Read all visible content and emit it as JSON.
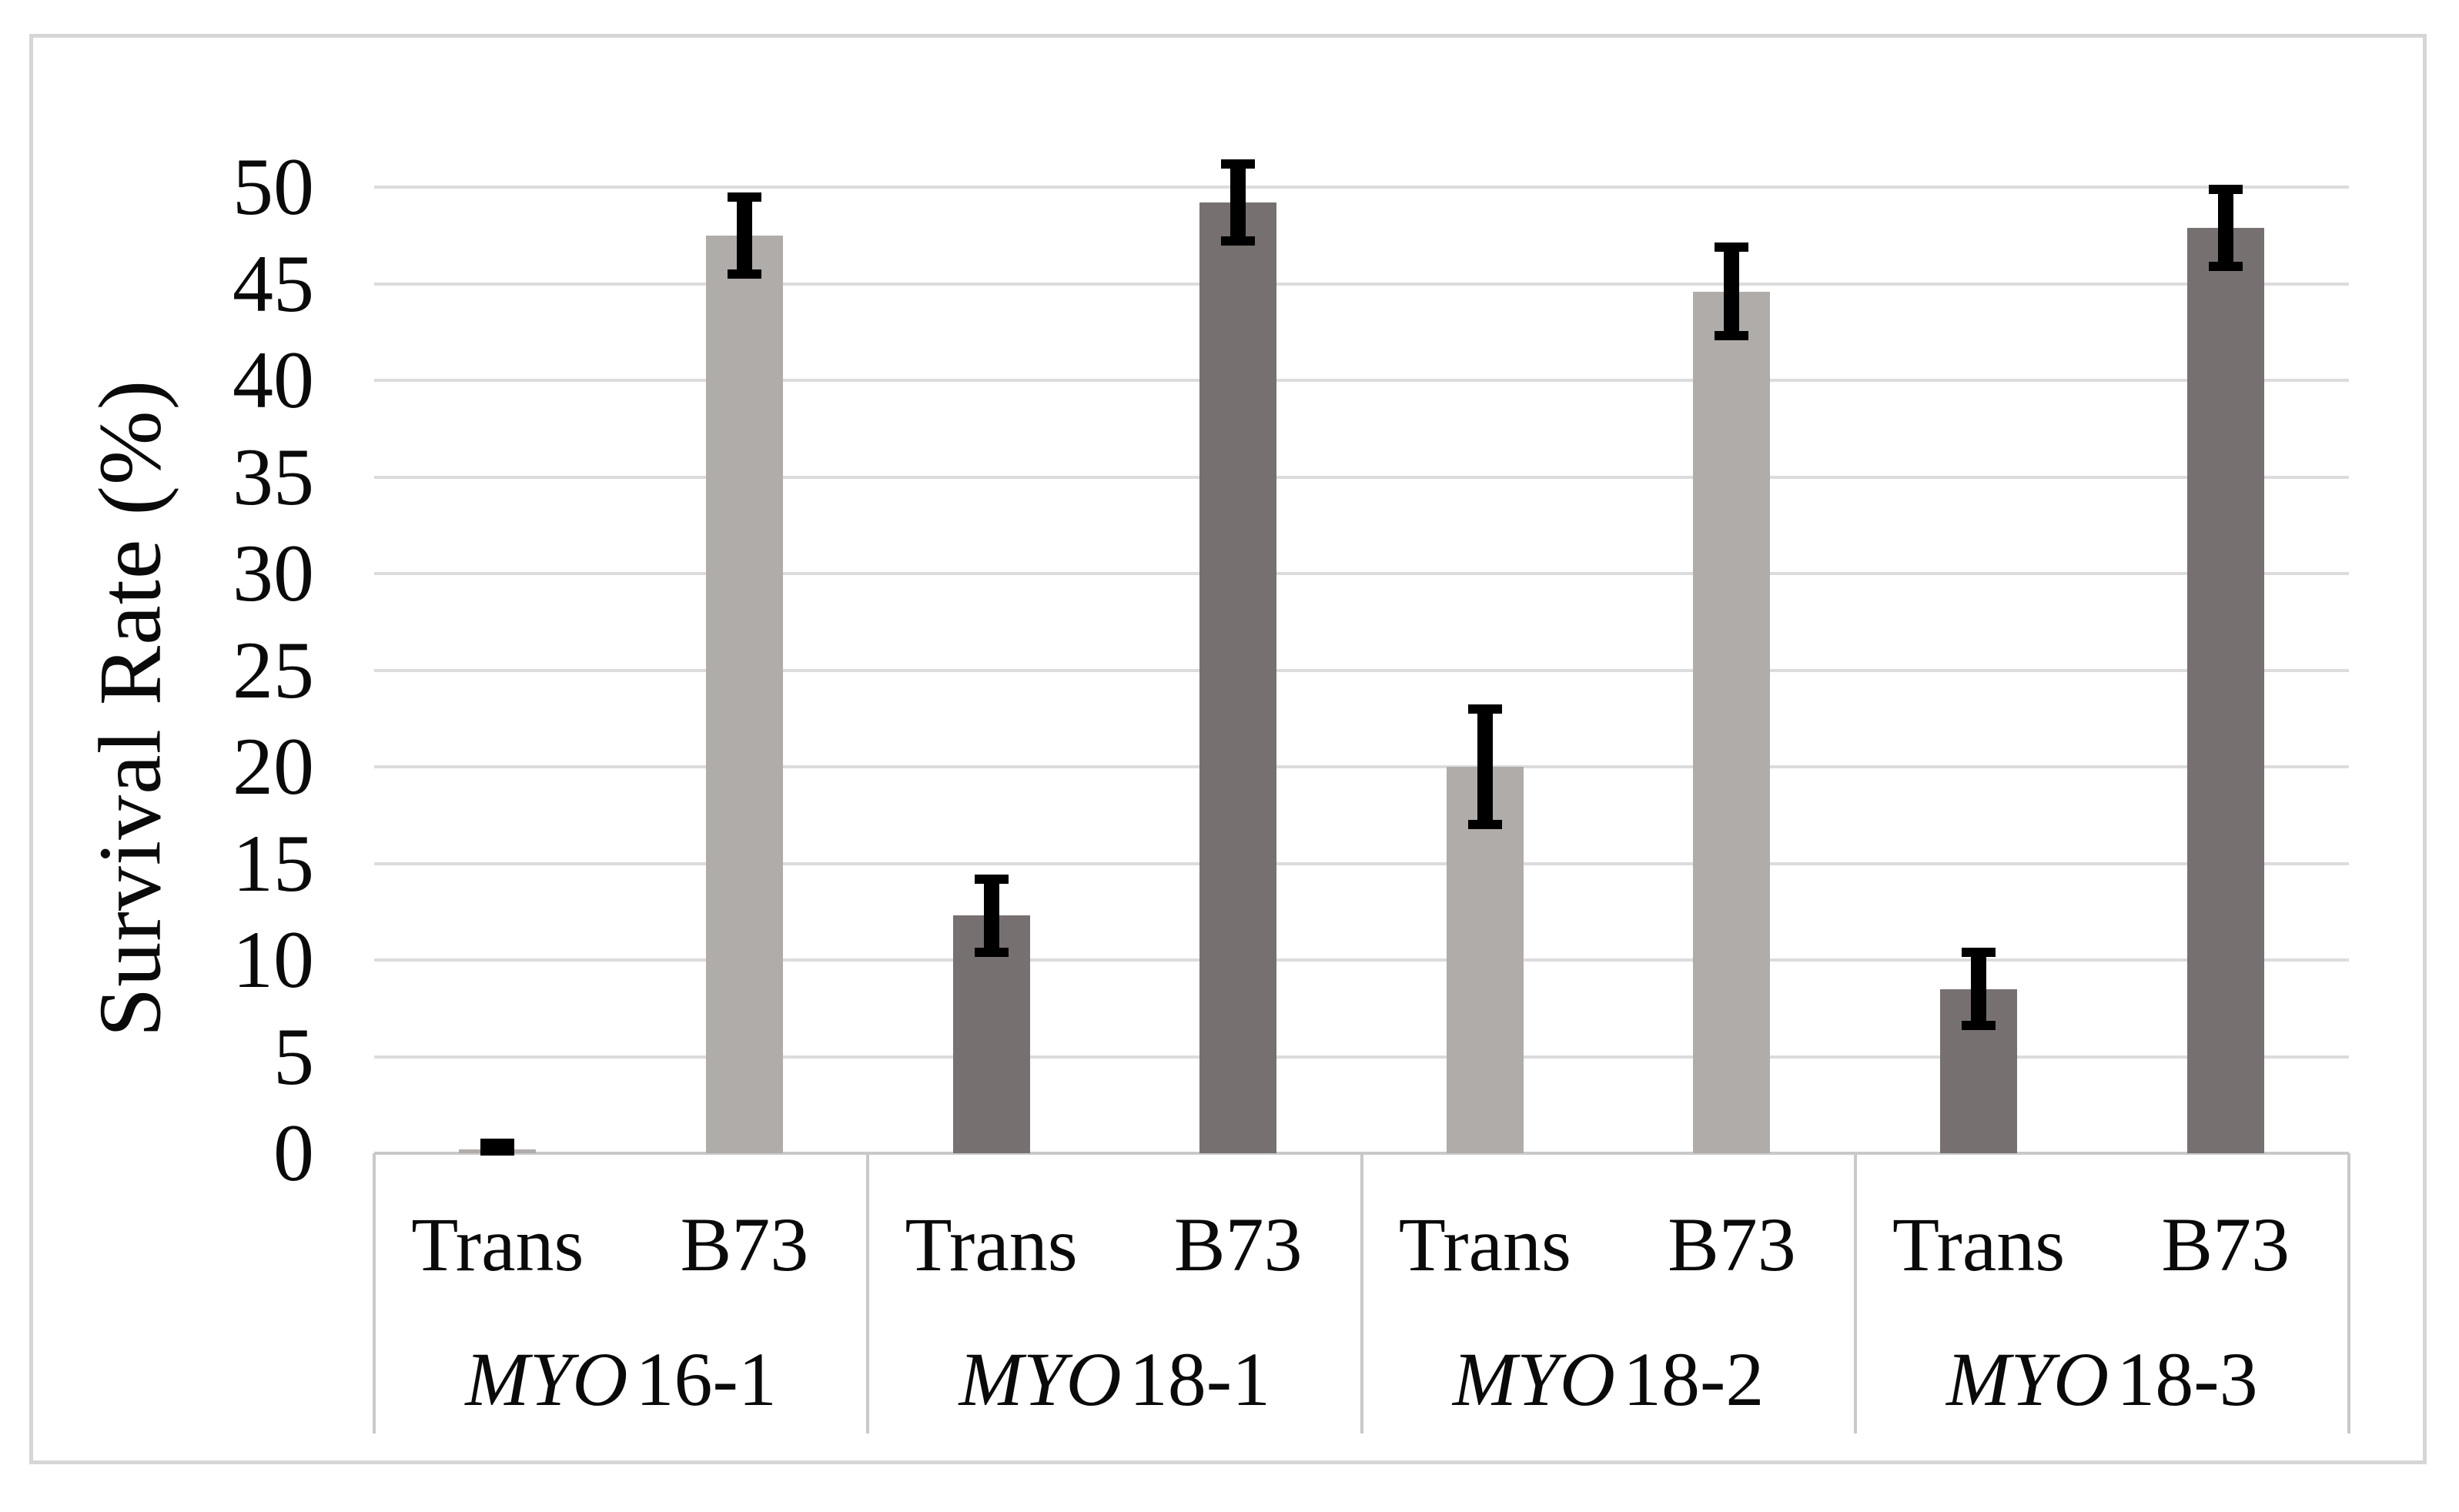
{
  "figure": {
    "background": "#ffffff",
    "border_color": "#d6d6d6"
  },
  "chart_data": {
    "type": "bar",
    "title": "",
    "ylabel": "Survival Rate (%)",
    "xlabel": "",
    "ylim": [
      0,
      50
    ],
    "yticks": [
      0,
      5,
      10,
      15,
      20,
      25,
      30,
      35,
      40,
      45,
      50
    ],
    "grid": "horizontal",
    "legend": "none",
    "error_bars": true,
    "bar_colors": {
      "light": "#b0acaa",
      "dark": "#767170"
    },
    "error_bar_color": "#000000",
    "gridline_color": "#dcdcdc",
    "axis_color": "#c9c9c9",
    "text_color": "#0a0a0a",
    "categories_level1": [
      "Trans",
      "B73"
    ],
    "groups": [
      {
        "label": "MYO16-1",
        "label_italic": "MYO",
        "label_rest": "16-1",
        "shade": "light",
        "bars": [
          {
            "label": "Trans",
            "value": 0.2,
            "error": 0.3
          },
          {
            "label": "B73",
            "value": 47.5,
            "error": 2.0
          }
        ]
      },
      {
        "label": "MYO18-1",
        "label_italic": "MYO",
        "label_rest": "18-1",
        "shade": "dark",
        "bars": [
          {
            "label": "Trans",
            "value": 12.3,
            "error": 1.9
          },
          {
            "label": "B73",
            "value": 49.2,
            "error": 2.0
          }
        ]
      },
      {
        "label": "MYO18-2",
        "label_italic": "MYO",
        "label_rest": "18-2",
        "shade": "light",
        "bars": [
          {
            "label": "Trans",
            "value": 20.0,
            "error": 3.0
          },
          {
            "label": "B73",
            "value": 44.6,
            "error": 2.3
          }
        ]
      },
      {
        "label": "MYO18-3",
        "label_italic": "MYO",
        "label_rest": "18-3",
        "shade": "dark",
        "bars": [
          {
            "label": "Trans",
            "value": 8.5,
            "error": 1.9
          },
          {
            "label": "B73",
            "value": 47.9,
            "error": 2.0
          }
        ]
      }
    ]
  }
}
